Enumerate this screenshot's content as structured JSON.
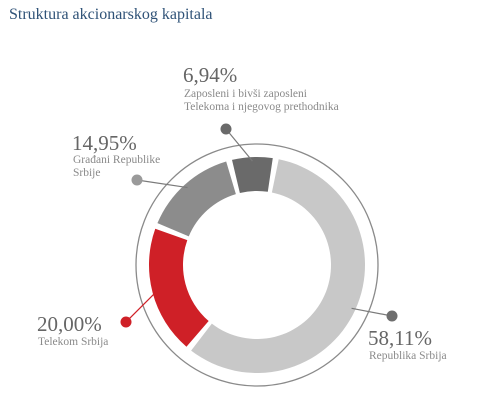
{
  "title": "Struktura akcionarskog kapitala",
  "chart_data": {
    "type": "pie",
    "title": "Struktura akcionarskog kapitala",
    "slices": [
      {
        "value": 58.11,
        "value_label": "58,11%",
        "label_lines": [
          "Republika Srbija"
        ],
        "color": "#c8c8c8",
        "dot_color": "#6e6e6e"
      },
      {
        "value": 20.0,
        "value_label": "20,00%",
        "label_lines": [
          "Telekom Srbija"
        ],
        "color": "#cf2027",
        "dot_color": "#cf2027"
      },
      {
        "value": 14.95,
        "value_label": "14,95%",
        "label_lines": [
          "Građani Republike",
          "Srbije"
        ],
        "color": "#8c8c8c",
        "dot_color": "#9a9a9a"
      },
      {
        "value": 6.94,
        "value_label": "6,94%",
        "label_lines": [
          "Zaposleni i bivši zaposleni",
          "Telekoma i njegovog prethodnika"
        ],
        "color": "#6a6a6a",
        "dot_color": "#6a6a6a"
      }
    ],
    "legend": "none"
  }
}
